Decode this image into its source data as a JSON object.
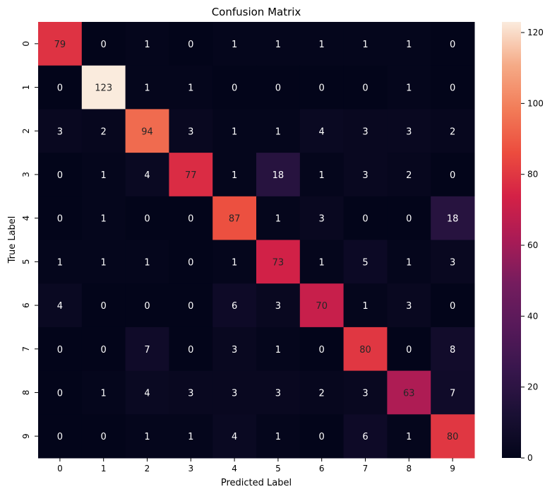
{
  "chart_data": {
    "type": "heatmap",
    "title": "Confusion Matrix",
    "xlabel": "Predicted Label",
    "ylabel": "True Label",
    "x_categories": [
      "0",
      "1",
      "2",
      "3",
      "4",
      "5",
      "6",
      "7",
      "8",
      "9"
    ],
    "y_categories": [
      "0",
      "1",
      "2",
      "3",
      "4",
      "5",
      "6",
      "7",
      "8",
      "9"
    ],
    "values": [
      [
        79,
        0,
        1,
        0,
        1,
        1,
        1,
        1,
        1,
        0
      ],
      [
        0,
        123,
        1,
        1,
        0,
        0,
        0,
        0,
        1,
        0
      ],
      [
        3,
        2,
        94,
        3,
        1,
        1,
        4,
        3,
        3,
        2
      ],
      [
        0,
        1,
        4,
        77,
        1,
        18,
        1,
        3,
        2,
        0
      ],
      [
        0,
        1,
        0,
        0,
        87,
        1,
        3,
        0,
        0,
        18
      ],
      [
        1,
        1,
        1,
        0,
        1,
        73,
        1,
        5,
        1,
        3
      ],
      [
        4,
        0,
        0,
        0,
        6,
        3,
        70,
        1,
        3,
        0
      ],
      [
        0,
        0,
        7,
        0,
        3,
        1,
        0,
        80,
        0,
        8
      ],
      [
        0,
        1,
        4,
        3,
        3,
        3,
        2,
        3,
        63,
        7
      ],
      [
        0,
        0,
        1,
        1,
        4,
        1,
        0,
        6,
        1,
        80
      ]
    ],
    "colorbar": {
      "min": 0,
      "max": 123,
      "ticks": [
        0,
        20,
        40,
        60,
        80,
        100,
        120
      ],
      "colormap": "rocket"
    },
    "annotation_threshold": 61.5,
    "annotation_colors": {
      "light": "#ffffff",
      "dark": "#262626"
    }
  }
}
